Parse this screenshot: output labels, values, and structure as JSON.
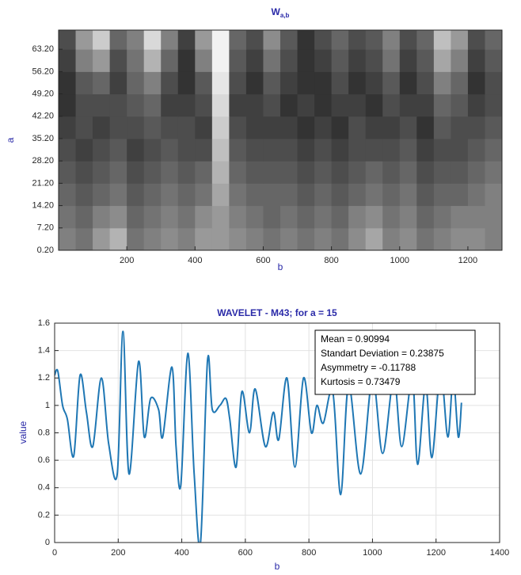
{
  "chart_data": [
    {
      "type": "heatmap",
      "title": "W",
      "title_subscript": "a,b",
      "xlabel": "b",
      "ylabel": "a",
      "x_bins": [
        0,
        50,
        100,
        150,
        200,
        250,
        300,
        350,
        400,
        450,
        500,
        550,
        600,
        650,
        700,
        750,
        800,
        850,
        900,
        950,
        1000,
        1050,
        1100,
        1150,
        1200,
        1250,
        1300
      ],
      "y_bins": [
        0.2,
        7.2,
        14.2,
        21.2,
        28.2,
        35.2,
        42.2,
        49.2,
        56.2,
        63.2,
        69.2
      ],
      "z": [
        [
          0.5,
          0.45,
          0.6,
          0.7,
          0.45,
          0.5,
          0.55,
          0.5,
          0.6,
          0.6,
          0.55,
          0.5,
          0.45,
          0.5,
          0.45,
          0.5,
          0.45,
          0.55,
          0.65,
          0.5,
          0.55,
          0.45,
          0.5,
          0.55,
          0.55,
          0.5
        ],
        [
          0.45,
          0.4,
          0.5,
          0.55,
          0.4,
          0.45,
          0.5,
          0.45,
          0.55,
          0.6,
          0.5,
          0.45,
          0.4,
          0.45,
          0.4,
          0.45,
          0.4,
          0.5,
          0.55,
          0.45,
          0.5,
          0.4,
          0.45,
          0.5,
          0.5,
          0.5
        ],
        [
          0.4,
          0.35,
          0.4,
          0.45,
          0.35,
          0.4,
          0.45,
          0.4,
          0.45,
          0.65,
          0.45,
          0.4,
          0.4,
          0.4,
          0.35,
          0.4,
          0.35,
          0.4,
          0.45,
          0.4,
          0.45,
          0.35,
          0.4,
          0.4,
          0.45,
          0.5
        ],
        [
          0.35,
          0.3,
          0.35,
          0.4,
          0.3,
          0.35,
          0.4,
          0.35,
          0.4,
          0.7,
          0.4,
          0.35,
          0.35,
          0.35,
          0.3,
          0.35,
          0.3,
          0.35,
          0.4,
          0.35,
          0.4,
          0.3,
          0.35,
          0.35,
          0.4,
          0.45
        ],
        [
          0.3,
          0.25,
          0.3,
          0.35,
          0.25,
          0.3,
          0.35,
          0.3,
          0.3,
          0.75,
          0.35,
          0.3,
          0.3,
          0.3,
          0.25,
          0.3,
          0.25,
          0.3,
          0.3,
          0.3,
          0.35,
          0.25,
          0.3,
          0.3,
          0.35,
          0.4
        ],
        [
          0.25,
          0.3,
          0.25,
          0.3,
          0.3,
          0.35,
          0.3,
          0.3,
          0.25,
          0.8,
          0.3,
          0.25,
          0.25,
          0.25,
          0.2,
          0.25,
          0.2,
          0.3,
          0.25,
          0.25,
          0.3,
          0.2,
          0.35,
          0.3,
          0.3,
          0.35
        ],
        [
          0.2,
          0.3,
          0.3,
          0.3,
          0.35,
          0.4,
          0.25,
          0.25,
          0.3,
          0.85,
          0.25,
          0.25,
          0.3,
          0.2,
          0.25,
          0.2,
          0.25,
          0.25,
          0.2,
          0.3,
          0.25,
          0.25,
          0.4,
          0.35,
          0.25,
          0.3
        ],
        [
          0.2,
          0.35,
          0.4,
          0.25,
          0.4,
          0.5,
          0.3,
          0.2,
          0.35,
          0.9,
          0.3,
          0.2,
          0.35,
          0.25,
          0.2,
          0.2,
          0.3,
          0.2,
          0.25,
          0.35,
          0.2,
          0.3,
          0.5,
          0.4,
          0.2,
          0.3
        ],
        [
          0.25,
          0.5,
          0.6,
          0.3,
          0.45,
          0.7,
          0.4,
          0.2,
          0.5,
          0.95,
          0.35,
          0.25,
          0.45,
          0.3,
          0.2,
          0.25,
          0.35,
          0.25,
          0.3,
          0.45,
          0.25,
          0.35,
          0.65,
          0.5,
          0.25,
          0.35
        ],
        [
          0.3,
          0.6,
          0.8,
          0.4,
          0.5,
          0.85,
          0.5,
          0.25,
          0.6,
          0.95,
          0.4,
          0.3,
          0.55,
          0.35,
          0.2,
          0.3,
          0.4,
          0.3,
          0.35,
          0.5,
          0.3,
          0.4,
          0.75,
          0.6,
          0.3,
          0.4
        ]
      ],
      "xlim": [
        0,
        1300
      ],
      "ylim": [
        0.2,
        69.2
      ],
      "xticks": [
        200,
        400,
        600,
        800,
        1000,
        1200
      ],
      "yticks": [
        {
          "value": 0.2,
          "label": "0.20"
        },
        {
          "value": 7.2,
          "label": "7.20"
        },
        {
          "value": 14.2,
          "label": "14.20"
        },
        {
          "value": 21.2,
          "label": "21.20"
        },
        {
          "value": 28.2,
          "label": "28.20"
        },
        {
          "value": 35.2,
          "label": "35.20"
        },
        {
          "value": 42.2,
          "label": "42.20"
        },
        {
          "value": 49.2,
          "label": "49.20"
        },
        {
          "value": 56.2,
          "label": "56.20"
        },
        {
          "value": 63.2,
          "label": "63.20"
        }
      ],
      "grid": false
    },
    {
      "type": "line",
      "title": "WAVELET - M43; for a = 15",
      "xlabel": "b",
      "ylabel": "value",
      "color": "#1f77b4",
      "x": [
        0,
        10,
        25,
        40,
        60,
        80,
        100,
        120,
        147,
        170,
        197,
        215,
        234,
        264,
        282,
        302,
        327,
        340,
        369,
        382,
        397,
        419,
        439,
        459,
        481,
        496,
        520,
        539,
        551,
        571,
        589,
        613,
        631,
        663,
        688,
        705,
        731,
        756,
        783,
        808,
        825,
        845,
        875,
        900,
        925,
        963,
        1000,
        1032,
        1067,
        1092,
        1125,
        1142,
        1167,
        1187,
        1214,
        1237,
        1254,
        1270,
        1280
      ],
      "values": [
        1.22,
        1.25,
        1.0,
        0.9,
        0.63,
        1.22,
        0.95,
        0.7,
        1.2,
        0.72,
        0.5,
        1.54,
        0.5,
        1.32,
        0.77,
        1.05,
        0.97,
        0.77,
        1.28,
        0.7,
        0.42,
        1.38,
        0.5,
        0,
        1.33,
        0.97,
        1.0,
        1.05,
        0.9,
        0.55,
        1.1,
        0.8,
        1.12,
        0.7,
        0.95,
        0.75,
        1.2,
        0.55,
        1.2,
        0.8,
        1.0,
        0.87,
        1.1,
        0.35,
        1.15,
        0.5,
        1.2,
        0.65,
        1.2,
        0.7,
        1.2,
        0.57,
        1.15,
        0.62,
        1.25,
        0.77,
        1.2,
        0.77,
        1.02
      ],
      "xlim": [
        0,
        1400
      ],
      "ylim": [
        0,
        1.6
      ],
      "xticks": [
        0,
        200,
        400,
        600,
        800,
        1000,
        1200,
        1400
      ],
      "yticks": [
        0,
        0.2,
        0.4,
        0.6,
        0.8,
        1,
        1.2,
        1.4,
        1.6
      ],
      "grid": true,
      "annotations": [
        "Mean = 0.90994",
        "Standart Deviation = 0.23875",
        "Asymmetry = -0.11788",
        "Kurtosis = 0.73479"
      ]
    }
  ]
}
